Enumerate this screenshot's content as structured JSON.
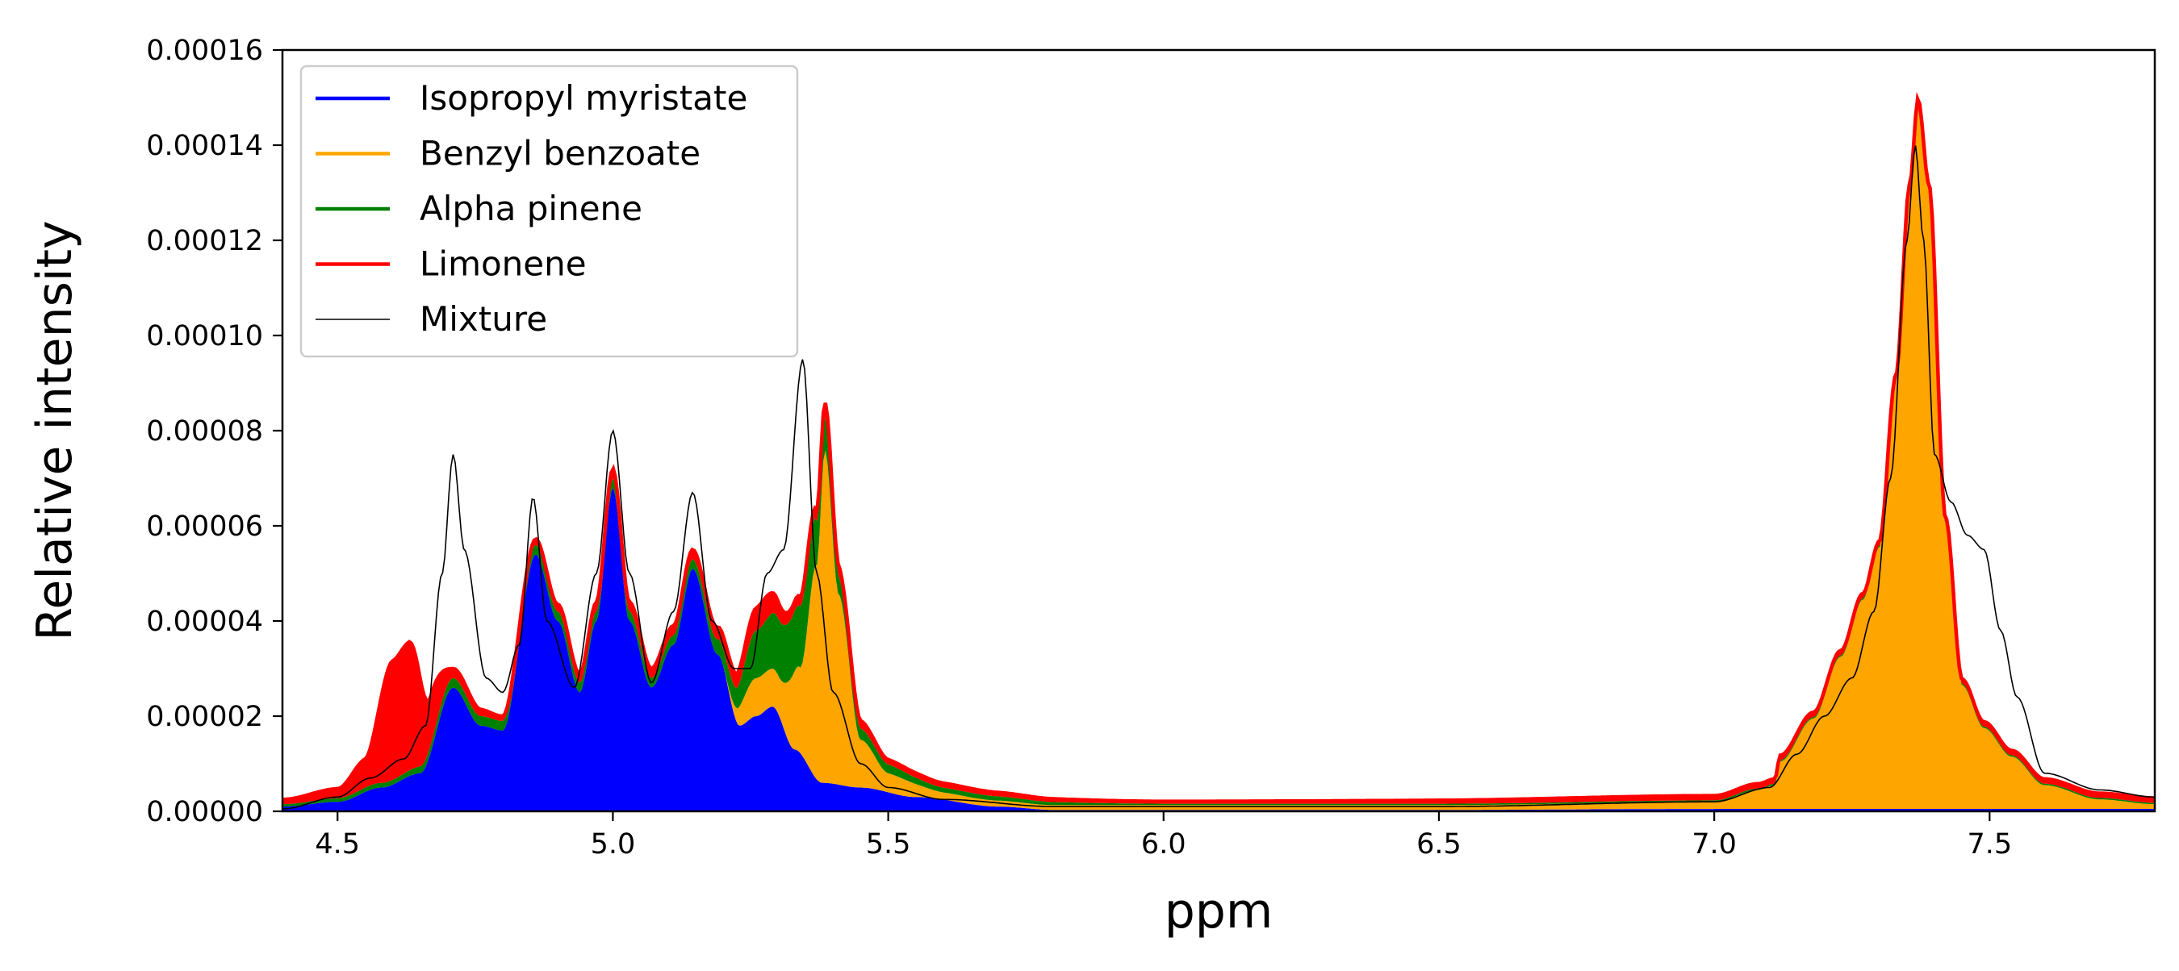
{
  "chart_data": {
    "type": "area",
    "title": "",
    "xlabel": "ppm",
    "ylabel": "Relative intensity",
    "xlim": [
      4.4,
      7.8
    ],
    "ylim": [
      0,
      0.00016
    ],
    "grid": false,
    "legend_position": "top-left",
    "x_ticks": [
      {
        "value": 4.5,
        "label": "4.5"
      },
      {
        "value": 5.0,
        "label": "5.0"
      },
      {
        "value": 5.5,
        "label": "5.5"
      },
      {
        "value": 6.0,
        "label": "6.0"
      },
      {
        "value": 6.5,
        "label": "6.5"
      },
      {
        "value": 7.0,
        "label": "7.0"
      },
      {
        "value": 7.5,
        "label": "7.5"
      }
    ],
    "y_ticks": [
      {
        "value": 0,
        "label": "0.00000"
      },
      {
        "value": 2e-05,
        "label": "0.00002"
      },
      {
        "value": 4e-05,
        "label": "0.00004"
      },
      {
        "value": 6e-05,
        "label": "0.00006"
      },
      {
        "value": 8e-05,
        "label": "0.00008"
      },
      {
        "value": 0.0001,
        "label": "0.00010"
      },
      {
        "value": 0.00012,
        "label": "0.00012"
      },
      {
        "value": 0.00014,
        "label": "0.00014"
      },
      {
        "value": 0.00016,
        "label": "0.00016"
      }
    ],
    "stacked": true,
    "series": [
      {
        "name": "Isopropyl myristate",
        "color": "#0000ff",
        "points": [
          [
            4.4,
            1e-06
          ],
          [
            4.5,
            2e-06
          ],
          [
            4.58,
            5e-06
          ],
          [
            4.65,
            8e-06
          ],
          [
            4.71,
            2.6e-05
          ],
          [
            4.76,
            1.8e-05
          ],
          [
            4.8,
            1.7e-05
          ],
          [
            4.86,
            5.4e-05
          ],
          [
            4.9,
            4e-05
          ],
          [
            4.94,
            2.5e-05
          ],
          [
            4.97,
            4e-05
          ],
          [
            5.0,
            6.8e-05
          ],
          [
            5.03,
            4e-05
          ],
          [
            5.07,
            2.6e-05
          ],
          [
            5.11,
            3.5e-05
          ],
          [
            5.145,
            5.1e-05
          ],
          [
            5.19,
            3.3e-05
          ],
          [
            5.23,
            1.8e-05
          ],
          [
            5.26,
            2e-05
          ],
          [
            5.29,
            2.2e-05
          ],
          [
            5.33,
            1.3e-05
          ],
          [
            5.38,
            6e-06
          ],
          [
            5.45,
            5e-06
          ],
          [
            5.55,
            3e-06
          ],
          [
            5.7,
            1e-06
          ],
          [
            5.8,
            3e-07
          ],
          [
            6.5,
            3e-07
          ],
          [
            7.0,
            5e-07
          ],
          [
            7.8,
            5e-07
          ]
        ]
      },
      {
        "name": "Benzyl benzoate",
        "color": "#ffa500",
        "points": [
          [
            4.4,
            0
          ],
          [
            5.2,
            0
          ],
          [
            5.26,
            8e-06
          ],
          [
            5.3,
            8e-06
          ],
          [
            5.34,
            1.8e-05
          ],
          [
            5.37,
            4.5e-05
          ],
          [
            5.385,
            7e-05
          ],
          [
            5.41,
            4e-05
          ],
          [
            5.45,
            1e-05
          ],
          [
            5.5,
            4e-06
          ],
          [
            5.6,
            1.5e-06
          ],
          [
            5.8,
            1e-06
          ],
          [
            6.5,
            1e-06
          ],
          [
            7.0,
            1.5e-06
          ],
          [
            7.08,
            4e-06
          ],
          [
            7.11,
            5e-06
          ],
          [
            7.12,
            1e-05
          ],
          [
            7.18,
            1.9e-05
          ],
          [
            7.23,
            3.2e-05
          ],
          [
            7.27,
            4.4e-05
          ],
          [
            7.3,
            5.5e-05
          ],
          [
            7.33,
            9e-05
          ],
          [
            7.355,
            0.00013
          ],
          [
            7.37,
            0.000148
          ],
          [
            7.39,
            0.00013
          ],
          [
            7.42,
            6e-05
          ],
          [
            7.45,
            2.6e-05
          ],
          [
            7.49,
            1.7e-05
          ],
          [
            7.54,
            1.1e-05
          ],
          [
            7.6,
            5e-06
          ],
          [
            7.7,
            2e-06
          ],
          [
            7.8,
            1e-06
          ]
        ]
      },
      {
        "name": "Alpha pinene",
        "color": "#008000",
        "points": [
          [
            4.4,
            5e-07
          ],
          [
            4.6,
            1e-06
          ],
          [
            4.71,
            2e-06
          ],
          [
            4.86,
            2e-06
          ],
          [
            5.0,
            2e-06
          ],
          [
            5.15,
            2e-06
          ],
          [
            5.22,
            4e-06
          ],
          [
            5.26,
            1e-05
          ],
          [
            5.3,
            1.2e-05
          ],
          [
            5.35,
            1.3e-05
          ],
          [
            5.385,
            7e-06
          ],
          [
            5.42,
            3e-06
          ],
          [
            5.47,
            2e-06
          ],
          [
            5.6,
            1e-06
          ],
          [
            6.0,
            3e-07
          ],
          [
            7.8,
            3e-07
          ]
        ]
      },
      {
        "name": "Limonene",
        "color": "#ff0000",
        "points": [
          [
            4.4,
            1e-06
          ],
          [
            4.5,
            2e-06
          ],
          [
            4.55,
            6e-06
          ],
          [
            4.6,
            2.5e-05
          ],
          [
            4.63,
            2.7e-05
          ],
          [
            4.67,
            1e-05
          ],
          [
            4.71,
            2e-06
          ],
          [
            4.8,
            1e-06
          ],
          [
            5.0,
            2e-06
          ],
          [
            5.15,
            2e-06
          ],
          [
            5.23,
            3e-06
          ],
          [
            5.27,
            5e-06
          ],
          [
            5.33,
            2e-06
          ],
          [
            5.36,
            2e-06
          ],
          [
            5.385,
            3e-06
          ],
          [
            5.42,
            2e-06
          ],
          [
            5.5,
            1e-06
          ],
          [
            6.0,
            5e-07
          ],
          [
            7.1,
            1e-06
          ],
          [
            7.37,
            1e-06
          ],
          [
            7.8,
            1e-06
          ]
        ]
      },
      {
        "name": "Mixture",
        "color": "#000000",
        "line_only": true,
        "points": [
          [
            4.4,
            5e-07
          ],
          [
            4.5,
            3e-06
          ],
          [
            4.56,
            7e-06
          ],
          [
            4.62,
            1.1e-05
          ],
          [
            4.66,
            1.8e-05
          ],
          [
            4.69,
            5e-05
          ],
          [
            4.71,
            7.5e-05
          ],
          [
            4.73,
            5.5e-05
          ],
          [
            4.77,
            2.8e-05
          ],
          [
            4.8,
            2.5e-05
          ],
          [
            4.83,
            3.5e-05
          ],
          [
            4.855,
            6.6e-05
          ],
          [
            4.88,
            4e-05
          ],
          [
            4.93,
            2.6e-05
          ],
          [
            4.97,
            5e-05
          ],
          [
            5.0,
            8e-05
          ],
          [
            5.03,
            5e-05
          ],
          [
            5.07,
            2.7e-05
          ],
          [
            5.11,
            4.2e-05
          ],
          [
            5.145,
            6.7e-05
          ],
          [
            5.18,
            4e-05
          ],
          [
            5.22,
            3e-05
          ],
          [
            5.25,
            3e-05
          ],
          [
            5.28,
            5e-05
          ],
          [
            5.31,
            5.5e-05
          ],
          [
            5.345,
            9.5e-05
          ],
          [
            5.37,
            5e-05
          ],
          [
            5.4,
            2.5e-05
          ],
          [
            5.45,
            1e-05
          ],
          [
            5.5,
            5e-06
          ],
          [
            5.6,
            2.5e-06
          ],
          [
            5.8,
            1e-06
          ],
          [
            6.5,
            1e-06
          ],
          [
            7.0,
            2e-06
          ],
          [
            7.1,
            5e-06
          ],
          [
            7.15,
            1.2e-05
          ],
          [
            7.2,
            2e-05
          ],
          [
            7.25,
            2.8e-05
          ],
          [
            7.29,
            4.2e-05
          ],
          [
            7.32,
            7e-05
          ],
          [
            7.35,
            0.00012
          ],
          [
            7.365,
            0.00014
          ],
          [
            7.38,
            0.00012
          ],
          [
            7.4,
            7.5e-05
          ],
          [
            7.43,
            6.5e-05
          ],
          [
            7.46,
            5.8e-05
          ],
          [
            7.49,
            5.5e-05
          ],
          [
            7.52,
            3.8e-05
          ],
          [
            7.55,
            2.4e-05
          ],
          [
            7.6,
            8e-06
          ],
          [
            7.7,
            4.5e-06
          ],
          [
            7.8,
            3e-06
          ]
        ]
      }
    ]
  }
}
